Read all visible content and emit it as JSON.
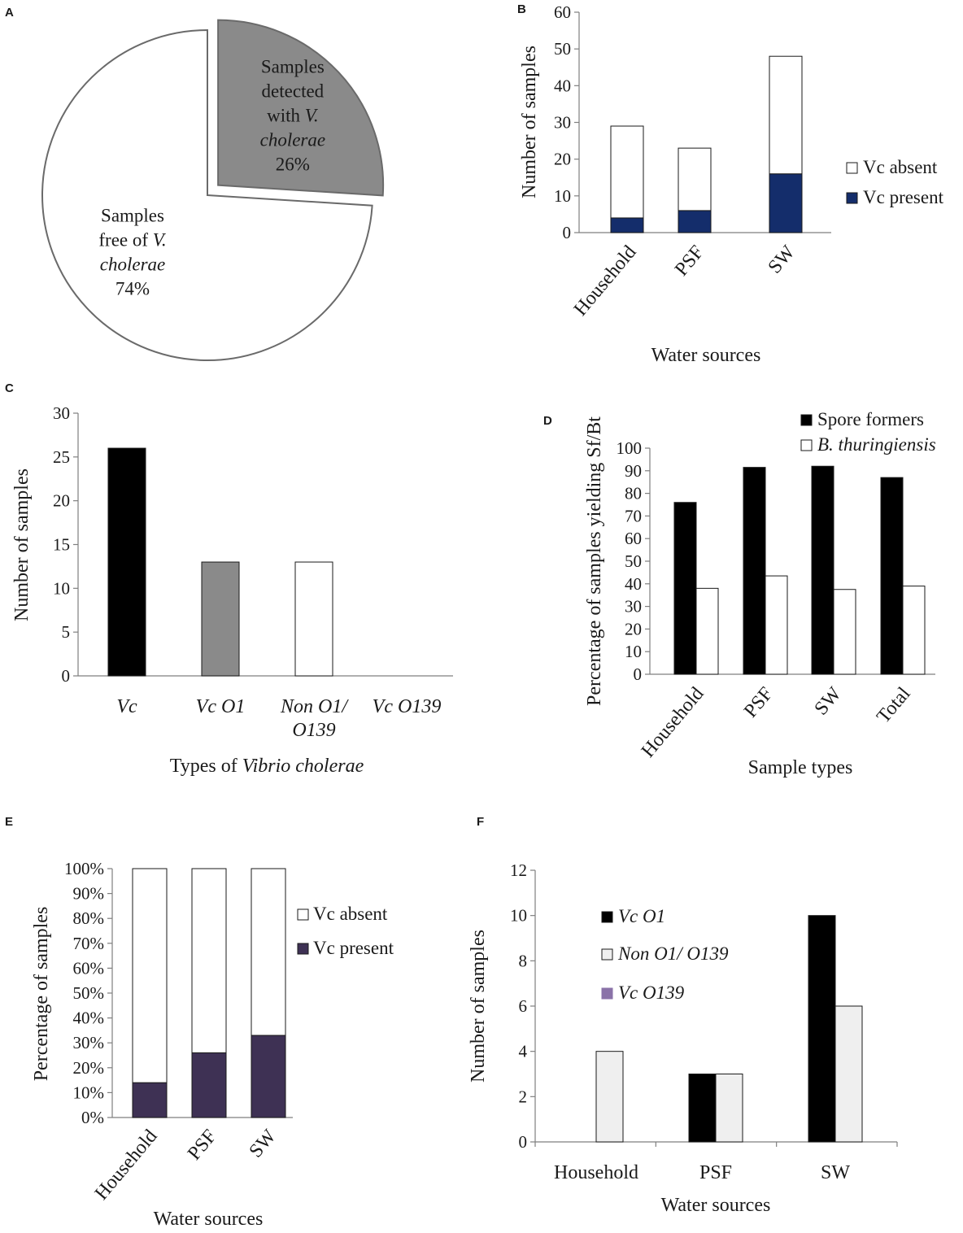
{
  "colors": {
    "navy": "#142d6b",
    "dark_purple": "#3e3154",
    "gray": "#8a8a8a",
    "light_gray": "#efefef",
    "legend_purple": "#8a72a8",
    "black": "#000000",
    "white": "#ffffff"
  },
  "chart_data": [
    {
      "panel": "A",
      "type": "pie",
      "slices": [
        {
          "name": "Samples detected with V. cholerae",
          "value": 26,
          "label_lines": [
            "Samples",
            "detected",
            "with V.",
            "cholerae",
            "26%"
          ],
          "exploded": true
        },
        {
          "name": "Samples free of V. cholerae",
          "value": 74,
          "label_lines": [
            "Samples",
            "free of V.",
            "cholerae",
            "74%"
          ],
          "exploded": false
        }
      ]
    },
    {
      "panel": "B",
      "type": "bar",
      "stacked": true,
      "categories": [
        "Household",
        "PSF",
        "SW"
      ],
      "series": [
        {
          "name": "Vc present",
          "values": [
            4,
            6,
            16
          ]
        },
        {
          "name": "Vc absent",
          "values": [
            25,
            17,
            32
          ]
        }
      ],
      "ylabel": "Number of samples",
      "xlabel": "Water sources",
      "ylim": [
        0,
        60
      ],
      "yticks": [
        "0",
        "10",
        "20",
        "30",
        "40",
        "50",
        "60"
      ],
      "legend": [
        "Vc absent",
        "Vc present"
      ],
      "legend_position": "right"
    },
    {
      "panel": "C",
      "type": "bar",
      "categories": [
        "Vc",
        "Vc O1",
        "Non O1/ O139",
        "Vc O139"
      ],
      "category_lines": [
        [
          "Vc"
        ],
        [
          "Vc O1"
        ],
        [
          "Non O1/",
          "O139"
        ],
        [
          "Vc O139"
        ]
      ],
      "values": [
        26,
        13,
        13,
        0
      ],
      "ylabel": "Number of samples",
      "xlabel_prefix": "Types of ",
      "xlabel_italic": "Vibrio cholerae",
      "ylim": [
        0,
        30
      ],
      "yticks": [
        "0",
        "5",
        "10",
        "15",
        "20",
        "25",
        "30"
      ]
    },
    {
      "panel": "D",
      "type": "bar",
      "categories": [
        "Household",
        "PSF",
        "SW",
        "Total"
      ],
      "series": [
        {
          "name": "Spore formers",
          "values": [
            76,
            91.5,
            92,
            87
          ]
        },
        {
          "name": "B. thuringiensis",
          "values": [
            38,
            43.5,
            37.5,
            39
          ]
        }
      ],
      "ylabel": "Percentage of samples yielding Sf/Bt",
      "xlabel": "Sample types",
      "ylim": [
        0,
        100
      ],
      "yticks": [
        "0",
        "10",
        "20",
        "30",
        "40",
        "50",
        "60",
        "70",
        "80",
        "90",
        "100"
      ],
      "legend": [
        "Spore formers",
        "B. thuringiensis"
      ],
      "legend_position": "top"
    },
    {
      "panel": "E",
      "type": "bar",
      "stacked": true,
      "percent": true,
      "categories": [
        "Household",
        "PSF",
        "SW"
      ],
      "series": [
        {
          "name": "Vc present",
          "values": [
            14,
            26,
            33
          ]
        },
        {
          "name": "Vc absent",
          "values": [
            86,
            74,
            67
          ]
        }
      ],
      "ylabel": "Percentage of samples",
      "xlabel": "Water sources",
      "ylim": [
        0,
        100
      ],
      "yticks": [
        "0%",
        "10%",
        "20%",
        "30%",
        "40%",
        "50%",
        "60%",
        "70%",
        "80%",
        "90%",
        "100%"
      ],
      "legend": [
        "Vc absent",
        "Vc present"
      ],
      "legend_position": "right"
    },
    {
      "panel": "F",
      "type": "bar",
      "categories": [
        "Household",
        "PSF",
        "SW"
      ],
      "series": [
        {
          "name": "Vc O1",
          "values": [
            0,
            3,
            10
          ]
        },
        {
          "name": "Non O1/ O139",
          "values": [
            4,
            3,
            6
          ]
        },
        {
          "name": "Vc O139",
          "values": [
            0,
            0,
            0
          ]
        }
      ],
      "ylabel": "Number of samples",
      "xlabel": "Water sources",
      "ylim": [
        0,
        12
      ],
      "yticks": [
        "0",
        "2",
        "4",
        "6",
        "8",
        "10",
        "12"
      ],
      "legend": [
        "Vc O1",
        "Non O1/ O139",
        "Vc O139"
      ],
      "legend_position": "top-left"
    }
  ]
}
